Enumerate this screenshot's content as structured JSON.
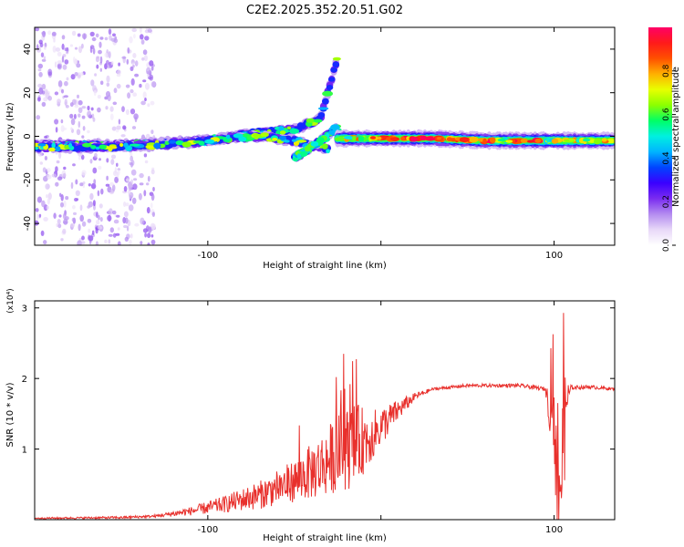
{
  "title": "C2E2.2025.352.20.51.G02",
  "colors": {
    "snr_line": "#e8302c",
    "axis": "#000000"
  },
  "chart_data": [
    {
      "type": "heatmap",
      "xlabel": "Height of straight line (km)",
      "ylabel": "Frequency (Hz)",
      "xlim": [
        -200,
        135
      ],
      "ylim": [
        -50,
        50
      ],
      "xticks": [
        -100,
        0,
        100
      ],
      "xtick_labels": [
        "-100",
        "",
        "100"
      ],
      "yticks": [
        -40,
        -20,
        0,
        20,
        40
      ],
      "ytick_labels": [
        "-40",
        "-20",
        "0",
        "20",
        "40"
      ],
      "colorbar": {
        "label": "Normalized spectral amplitude",
        "range": [
          0,
          1
        ],
        "ticks": [
          0.0,
          0.2,
          0.4,
          0.6,
          0.8
        ],
        "tick_labels": [
          "0.0",
          "0.2",
          "0.4",
          "0.6",
          "0.8"
        ],
        "colormap": [
          "#ffffff",
          "#e8d8f8",
          "#b48cf0",
          "#7a2cf0",
          "#3a00ff",
          "#0044ff",
          "#00b4ff",
          "#00f0e0",
          "#00ff66",
          "#8cff00",
          "#e8ff00",
          "#ffb000",
          "#ff5000",
          "#ff1a1a",
          "#ff0066"
        ]
      },
      "ridges": [
        {
          "x": [
            -200,
            -150,
            -100,
            -70,
            -50,
            -35,
            -25
          ],
          "y": [
            -4,
            -4,
            -2,
            2,
            3,
            8,
            36
          ],
          "peak": 0.5
        },
        {
          "x": [
            -200,
            -160,
            -130,
            -110,
            -90,
            -70,
            -50,
            -30
          ],
          "y": [
            -5,
            -5,
            -4,
            -3,
            -1,
            0,
            -2,
            -6
          ],
          "peak": 0.55
        },
        {
          "x": [
            -50,
            -35,
            -25
          ],
          "y": [
            -10,
            -2,
            4
          ],
          "peak": 0.45
        },
        {
          "x": [
            -25,
            0,
            30,
            60,
            100,
            135
          ],
          "y": [
            -1,
            -1,
            -1,
            -2,
            -2,
            -2
          ],
          "peak": 1.0
        }
      ],
      "scatter_columns": [
        -195,
        -185,
        -175,
        -165,
        -155,
        -145,
        -135
      ]
    },
    {
      "type": "line",
      "xlabel": "Height of straight line (km)",
      "ylabel": "SNR (10 * v/v)",
      "y_multiplier": "(x10⁴)",
      "xlim": [
        -200,
        135
      ],
      "ylim": [
        0,
        3.1
      ],
      "xticks": [
        -100,
        0,
        100
      ],
      "xtick_labels": [
        "-100",
        "",
        "100"
      ],
      "yticks": [
        1,
        2,
        3
      ],
      "ytick_labels": [
        "1",
        "2",
        "3"
      ],
      "series": [
        {
          "envelope_x": [
            -200,
            -150,
            -130,
            -110,
            -90,
            -70,
            -50,
            -35,
            -25,
            -15,
            -5,
            10,
            20,
            30,
            50,
            80,
            95,
            100,
            102,
            104,
            106,
            110,
            120,
            135
          ],
          "envelope_y": [
            0.02,
            0.03,
            0.05,
            0.12,
            0.22,
            0.35,
            0.55,
            0.75,
            0.95,
            1.05,
            1.2,
            1.55,
            1.75,
            1.85,
            1.9,
            1.9,
            1.85,
            1.3,
            0.8,
            0.5,
            1.6,
            1.87,
            1.88,
            1.85
          ],
          "noise_x": [
            -200,
            -130,
            -110,
            -90,
            -70,
            -50,
            -35,
            -25,
            -15,
            -5,
            10,
            20,
            30,
            95,
            100,
            103,
            106,
            110,
            135
          ],
          "noise_y": [
            0.01,
            0.02,
            0.06,
            0.12,
            0.2,
            0.3,
            0.45,
            0.55,
            0.6,
            0.35,
            0.15,
            0.05,
            0.02,
            0.03,
            0.6,
            1.2,
            0.5,
            0.03,
            0.02
          ]
        }
      ]
    }
  ]
}
